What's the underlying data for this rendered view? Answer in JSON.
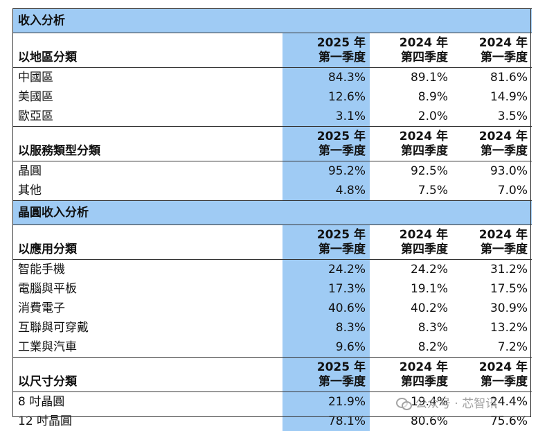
{
  "col_headers": {
    "c1": [
      "2025 年",
      "第一季度"
    ],
    "c2": [
      "2024 年",
      "第四季度"
    ],
    "c3": [
      "2024 年",
      "第一季度"
    ]
  },
  "sections": [
    {
      "title": "收入分析",
      "groups": [
        {
          "label": "以地區分類",
          "rows": [
            {
              "label": "中國區",
              "values": [
                "84.3%",
                "89.1%",
                "81.6%"
              ]
            },
            {
              "label": "美國區",
              "values": [
                "12.6%",
                "8.9%",
                "14.9%"
              ]
            },
            {
              "label": "歐亞區",
              "values": [
                "3.1%",
                "2.0%",
                "3.5%"
              ]
            }
          ]
        },
        {
          "label": "以服務類型分類",
          "rows": [
            {
              "label": "晶圓",
              "values": [
                "95.2%",
                "92.5%",
                "93.0%"
              ]
            },
            {
              "label": "其他",
              "values": [
                "4.8%",
                "7.5%",
                "7.0%"
              ]
            }
          ]
        }
      ]
    },
    {
      "title": "晶圓收入分析",
      "groups": [
        {
          "label": "以應用分類",
          "rows": [
            {
              "label": "智能手機",
              "values": [
                "24.2%",
                "24.2%",
                "31.2%"
              ]
            },
            {
              "label": "電腦與平板",
              "values": [
                "17.3%",
                "19.1%",
                "17.5%"
              ]
            },
            {
              "label": "消費電子",
              "values": [
                "40.6%",
                "40.2%",
                "30.9%"
              ]
            },
            {
              "label": "互聯與可穿戴",
              "values": [
                "8.3%",
                "8.3%",
                "13.2%"
              ]
            },
            {
              "label": "工業與汽車",
              "values": [
                "9.6%",
                "8.2%",
                "7.2%"
              ]
            }
          ]
        },
        {
          "label": "以尺寸分類",
          "rows": [
            {
              "label": "8 吋晶圓",
              "values": [
                "21.9%",
                "19.4%",
                "24.4%"
              ]
            },
            {
              "label": "12 吋晶圓",
              "values": [
                "78.1%",
                "80.6%",
                "75.6%"
              ]
            }
          ]
        }
      ]
    }
  ],
  "watermark": {
    "text": "公众号 · 芯智讯",
    "icon": "wechat-icon"
  },
  "colors": {
    "highlight": "#9fcbf4",
    "border": "#333333"
  }
}
